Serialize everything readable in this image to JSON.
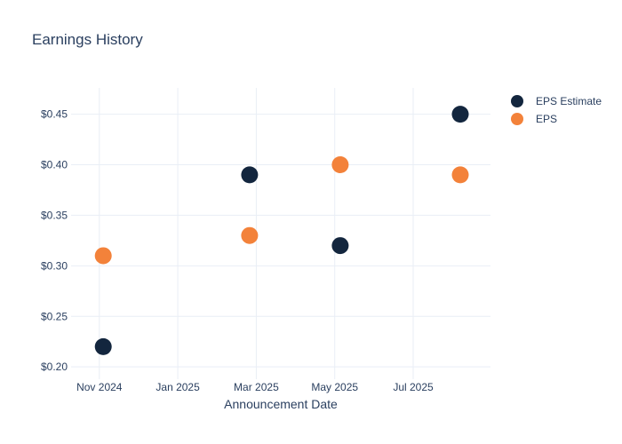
{
  "chart_data": {
    "type": "scatter",
    "title": "Earnings History",
    "xlabel": "Announcement Date",
    "ylabel": "",
    "grid": true,
    "legend_position": "right",
    "x_tick_labels": [
      "Nov 2024",
      "Jan 2025",
      "Mar 2025",
      "May 2025",
      "Jul 2025"
    ],
    "x_tick_months": [
      0,
      2,
      4,
      6,
      8
    ],
    "x_range_months": [
      -0.72,
      9.97
    ],
    "y_ticks": [
      0.2,
      0.25,
      0.3,
      0.35,
      0.4,
      0.45
    ],
    "y_tick_labels": [
      "$0.20",
      "$0.25",
      "$0.30",
      "$0.35",
      "$0.40",
      "$0.45"
    ],
    "y_range": [
      0.194,
      0.476
    ],
    "marker_size": 19,
    "series": [
      {
        "name": "EPS Estimate",
        "color": "#13263e",
        "x_months": [
          0.1,
          3.83,
          6.14,
          9.2
        ],
        "approx_dates": [
          "Nov 2024",
          "Feb 2025",
          "May 2025",
          "Aug 2025"
        ],
        "values": [
          0.22,
          0.39,
          0.32,
          0.45
        ]
      },
      {
        "name": "EPS",
        "color": "#f3823a",
        "x_months": [
          0.1,
          3.83,
          6.14,
          9.2
        ],
        "approx_dates": [
          "Nov 2024",
          "Feb 2025",
          "May 2025",
          "Aug 2025"
        ],
        "values": [
          0.31,
          0.33,
          0.4,
          0.39
        ]
      }
    ]
  },
  "colors": {
    "text": "#2a3f5f",
    "gridline": "#e9eef6",
    "background": "#ffffff"
  }
}
